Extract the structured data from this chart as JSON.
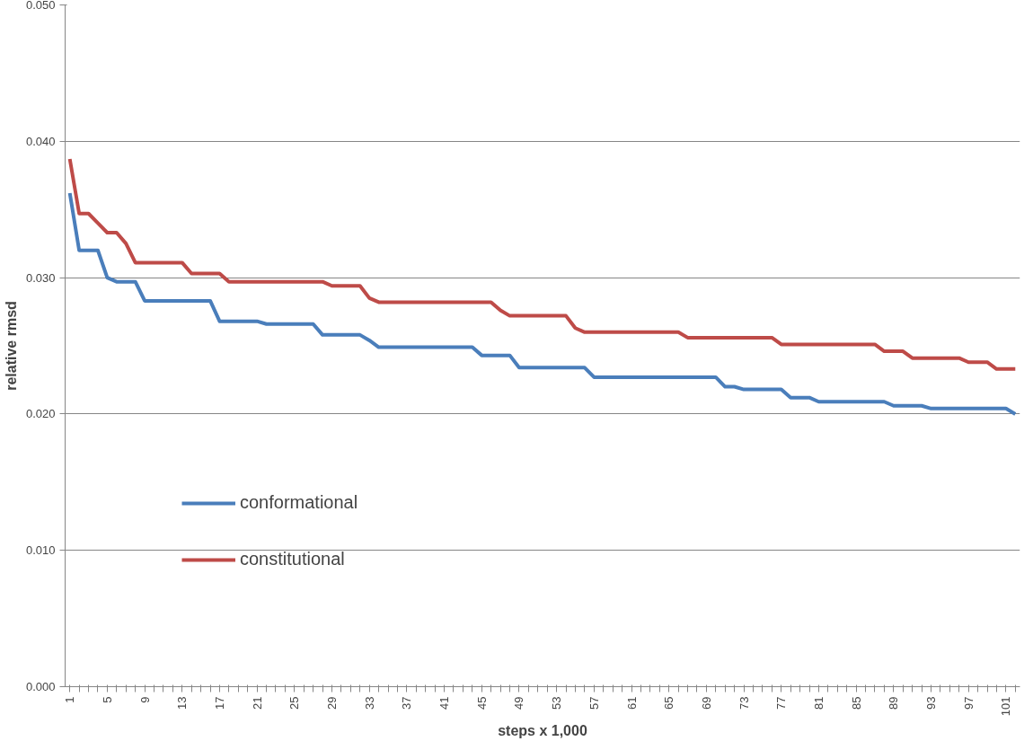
{
  "chart_data": {
    "type": "line",
    "xlabel": "steps x 1,000",
    "ylabel": "relative rmsd",
    "categories": [
      "1",
      null,
      null,
      null,
      "5",
      null,
      null,
      null,
      "9",
      null,
      null,
      null,
      "13",
      null,
      null,
      null,
      "17",
      null,
      null,
      null,
      "21",
      null,
      null,
      null,
      "25",
      null,
      null,
      null,
      "29",
      null,
      null,
      null,
      "33",
      null,
      null,
      null,
      "37",
      null,
      null,
      null,
      "41",
      null,
      null,
      null,
      "45",
      null,
      null,
      null,
      "49",
      null,
      null,
      null,
      "53",
      null,
      null,
      null,
      "57",
      null,
      null,
      null,
      "61",
      null,
      null,
      null,
      "65",
      null,
      null,
      null,
      "69",
      null,
      null,
      null,
      "73",
      null,
      null,
      null,
      "77",
      null,
      null,
      null,
      "81",
      null,
      null,
      null,
      "85",
      null,
      null,
      null,
      "89",
      null,
      null,
      null,
      "93",
      null,
      null,
      null,
      "97",
      null,
      null,
      null,
      "101",
      null
    ],
    "series": [
      {
        "name": "conformational",
        "color": "#4a7ebb",
        "values": [
          0.0362,
          0.032,
          0.032,
          0.032,
          0.03,
          0.0297,
          0.0297,
          0.0297,
          0.0283,
          0.0283,
          0.0283,
          0.0283,
          0.0283,
          0.0283,
          0.0283,
          0.0283,
          0.0268,
          0.0268,
          0.0268,
          0.0268,
          0.0268,
          0.0266,
          0.0266,
          0.0266,
          0.0266,
          0.0266,
          0.0266,
          0.0258,
          0.0258,
          0.0258,
          0.0258,
          0.0258,
          0.0254,
          0.0249,
          0.0249,
          0.0249,
          0.0249,
          0.0249,
          0.0249,
          0.0249,
          0.0249,
          0.0249,
          0.0249,
          0.0249,
          0.0243,
          0.0243,
          0.0243,
          0.0243,
          0.0234,
          0.0234,
          0.0234,
          0.0234,
          0.0234,
          0.0234,
          0.0234,
          0.0234,
          0.0227,
          0.0227,
          0.0227,
          0.0227,
          0.0227,
          0.0227,
          0.0227,
          0.0227,
          0.0227,
          0.0227,
          0.0227,
          0.0227,
          0.0227,
          0.0227,
          0.022,
          0.022,
          0.0218,
          0.0218,
          0.0218,
          0.0218,
          0.0218,
          0.0212,
          0.0212,
          0.0212,
          0.0209,
          0.0209,
          0.0209,
          0.0209,
          0.0209,
          0.0209,
          0.0209,
          0.0209,
          0.0206,
          0.0206,
          0.0206,
          0.0206,
          0.0204,
          0.0204,
          0.0204,
          0.0204,
          0.0204,
          0.0204,
          0.0204,
          0.0204,
          0.0204,
          0.02
        ]
      },
      {
        "name": "constitutional",
        "color": "#be4b48",
        "values": [
          0.0387,
          0.0347,
          0.0347,
          0.034,
          0.0333,
          0.0333,
          0.0325,
          0.0311,
          0.0311,
          0.0311,
          0.0311,
          0.0311,
          0.0311,
          0.0303,
          0.0303,
          0.0303,
          0.0303,
          0.0297,
          0.0297,
          0.0297,
          0.0297,
          0.0297,
          0.0297,
          0.0297,
          0.0297,
          0.0297,
          0.0297,
          0.0297,
          0.0294,
          0.0294,
          0.0294,
          0.0294,
          0.0285,
          0.0282,
          0.0282,
          0.0282,
          0.0282,
          0.0282,
          0.0282,
          0.0282,
          0.0282,
          0.0282,
          0.0282,
          0.0282,
          0.0282,
          0.0282,
          0.0276,
          0.0272,
          0.0272,
          0.0272,
          0.0272,
          0.0272,
          0.0272,
          0.0272,
          0.0263,
          0.026,
          0.026,
          0.026,
          0.026,
          0.026,
          0.026,
          0.026,
          0.026,
          0.026,
          0.026,
          0.026,
          0.0256,
          0.0256,
          0.0256,
          0.0256,
          0.0256,
          0.0256,
          0.0256,
          0.0256,
          0.0256,
          0.0256,
          0.0251,
          0.0251,
          0.0251,
          0.0251,
          0.0251,
          0.0251,
          0.0251,
          0.0251,
          0.0251,
          0.0251,
          0.0251,
          0.0246,
          0.0246,
          0.0246,
          0.0241,
          0.0241,
          0.0241,
          0.0241,
          0.0241,
          0.0241,
          0.0238,
          0.0238,
          0.0238,
          0.0233,
          0.0233,
          0.0233
        ]
      }
    ],
    "ylim": [
      0,
      0.05
    ],
    "yticks": [
      {
        "value": 0,
        "label": "0.000"
      },
      {
        "value": 0.01,
        "label": "0.010"
      },
      {
        "value": 0.02,
        "label": "0.020"
      },
      {
        "value": 0.03,
        "label": "0.030"
      },
      {
        "value": 0.04,
        "label": "0.040"
      },
      {
        "value": 0.05,
        "label": "0.050"
      }
    ],
    "grid": "y",
    "legend": "bottom left",
    "line_style": "solid",
    "marker": "none"
  }
}
